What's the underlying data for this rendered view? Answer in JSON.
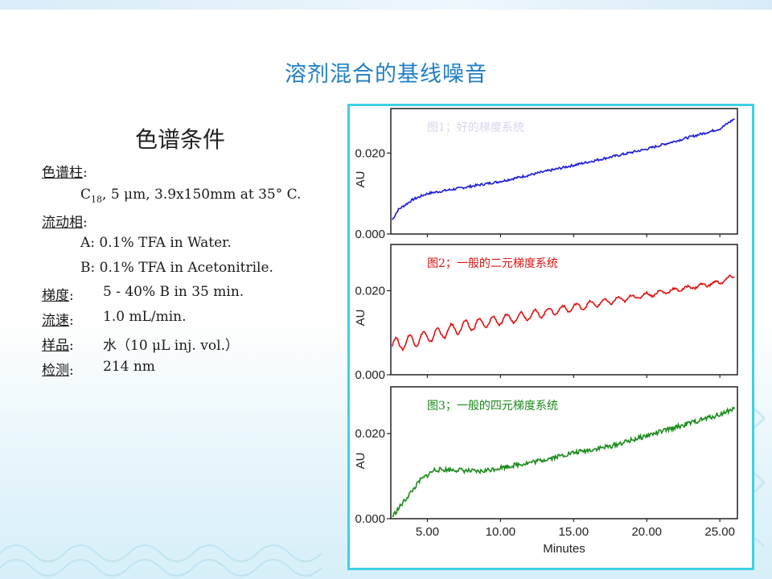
{
  "slide": {
    "title": "溶剂混合的基线噪音"
  },
  "conditions": {
    "heading": "色谱条件",
    "column_label": "色谱柱",
    "column_colon": ":",
    "column_value_pre": "C",
    "column_value_sub": "18",
    "column_value_post": ", 5 μm, 3.9x150mm at 35° C.",
    "mobile_label": "流动相",
    "mobile_colon": ":",
    "mobile_a": "A: 0.1% TFA in Water.",
    "mobile_b": "B: 0.1% TFA in Acetonitrile.",
    "gradient_label": "梯度",
    "gradient_colon": ":",
    "gradient_value": "5 - 40% B in 35 min.",
    "flow_label": "流速",
    "flow_colon": ":",
    "flow_value": "1.0 mL/min.",
    "sample_label": "样品",
    "sample_colon": ":",
    "sample_value": "水（10 μL inj. vol.）",
    "detect_label": "检测",
    "detect_colon": ":",
    "detect_value": "214 nm"
  },
  "chart_data": [
    {
      "type": "line",
      "title": "图1；好的梯度系统",
      "ylabel": "AU",
      "xlabel": "",
      "ylim": [
        0.0,
        0.031
      ],
      "xlim": [
        2.5,
        26.2
      ],
      "yticks": [
        "0.000",
        "0.020"
      ],
      "color": "#1a1adb",
      "series": [
        {
          "x": [
            2.6,
            3.0,
            4.0,
            5.0,
            7.5,
            10.0,
            12.5,
            15.0,
            17.5,
            20.0,
            22.5,
            25.0,
            26.0
          ],
          "values": [
            0.0035,
            0.006,
            0.0085,
            0.01,
            0.0115,
            0.013,
            0.015,
            0.017,
            0.019,
            0.021,
            0.0235,
            0.026,
            0.0285
          ]
        }
      ]
    },
    {
      "type": "line",
      "title": "图2；一般的二元梯度系统",
      "ylabel": "AU",
      "xlabel": "",
      "ylim": [
        0.0,
        0.031
      ],
      "xlim": [
        2.5,
        26.2
      ],
      "yticks": [
        "0.000",
        "0.020"
      ],
      "color": "#e01010",
      "series": [
        {
          "x": [
            2.6,
            5.0,
            7.5,
            10.0,
            12.5,
            15.0,
            17.5,
            20.0,
            22.5,
            25.0,
            26.0
          ],
          "values": [
            0.007,
            0.009,
            0.0115,
            0.013,
            0.0145,
            0.016,
            0.0175,
            0.019,
            0.0205,
            0.022,
            0.0235
          ]
        }
      ]
    },
    {
      "type": "line",
      "title": "图3；一般的四元梯度系统",
      "ylabel": "AU",
      "xlabel": "Minutes",
      "ylim": [
        0.0,
        0.031
      ],
      "xlim": [
        2.5,
        26.2
      ],
      "yticks": [
        "0.000",
        "0.020"
      ],
      "xticks": [
        "5.00",
        "10.00",
        "15.00",
        "20.00",
        "25.00"
      ],
      "color": "#1a8a1a",
      "series": [
        {
          "x": [
            2.6,
            3.5,
            4.5,
            5.5,
            7.0,
            8.5,
            10.0,
            12.5,
            15.0,
            17.5,
            20.0,
            22.5,
            25.0,
            26.0
          ],
          "values": [
            0.0005,
            0.0045,
            0.009,
            0.0115,
            0.0115,
            0.011,
            0.012,
            0.0135,
            0.0155,
            0.017,
            0.0195,
            0.022,
            0.0245,
            0.026
          ]
        }
      ]
    }
  ]
}
